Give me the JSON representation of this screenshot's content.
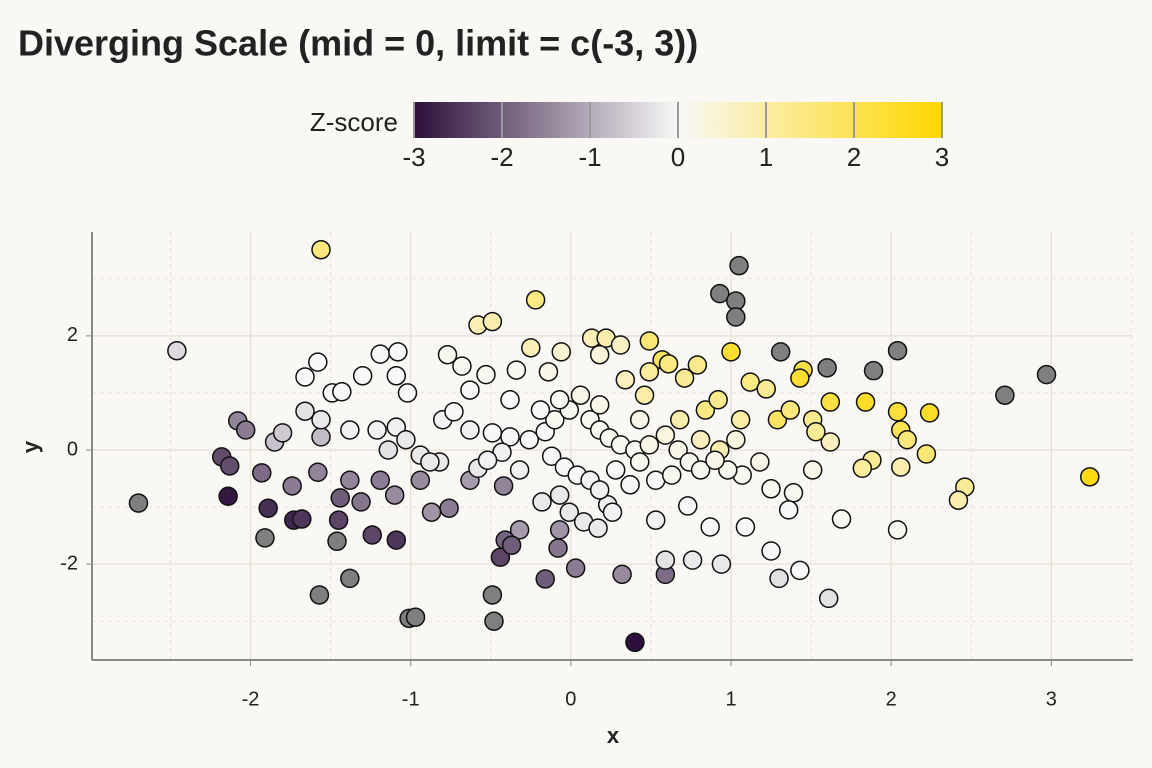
{
  "chart_data": {
    "type": "scatter",
    "title": "Diverging Scale (mid = 0, limit = c(-3, 3))",
    "x_label": "x",
    "y_label": "y",
    "legend_title": "Z-score",
    "color_scale": {
      "low": "#2c0f3a",
      "mid": "#f8f8f8",
      "high": "#ffd700",
      "limits": [
        -3,
        3
      ],
      "na_color": "#7f7f7f",
      "ticks": [
        -3,
        -2,
        -1,
        0,
        1,
        2,
        3
      ]
    },
    "xlim": [
      -2.99,
      3.51
    ],
    "ylim": [
      -3.68,
      3.82
    ],
    "xticks": [
      -2,
      -1,
      0,
      1,
      2,
      3
    ],
    "yticks": [
      -2,
      0,
      2
    ],
    "xminor": [
      -2.5,
      -1.5,
      -0.5,
      0.5,
      1.5,
      2.5,
      3.5
    ],
    "yminor": [
      -3,
      -1,
      1,
      3
    ],
    "grid": true,
    "points": [
      {
        "x": -2.7,
        "y": -0.93,
        "z": -3.4
      },
      {
        "x": -1.91,
        "y": -1.54,
        "z": -3.3
      },
      {
        "x": -1.57,
        "y": -2.54,
        "z": -3.5
      },
      {
        "x": -1.46,
        "y": -1.6,
        "z": -3.2
      },
      {
        "x": -1.38,
        "y": -2.25,
        "z": -3.4
      },
      {
        "x": -1.01,
        "y": -2.95,
        "z": -3.5
      },
      {
        "x": -0.97,
        "y": -2.93,
        "z": -3.5
      },
      {
        "x": -0.49,
        "y": -2.54,
        "z": -3.3
      },
      {
        "x": -0.48,
        "y": -3.0,
        "z": -3.6
      },
      {
        "x": 0.93,
        "y": 2.74,
        "z": 3.4
      },
      {
        "x": 1.03,
        "y": 2.61,
        "z": 3.3
      },
      {
        "x": 1.05,
        "y": 3.23,
        "z": 3.6
      },
      {
        "x": 1.03,
        "y": 2.33,
        "z": 3.2
      },
      {
        "x": 1.31,
        "y": 1.72,
        "z": 3.2
      },
      {
        "x": 1.6,
        "y": 1.44,
        "z": 3.3
      },
      {
        "x": 1.89,
        "y": 1.39,
        "z": 3.4
      },
      {
        "x": 2.04,
        "y": 1.74,
        "z": 3.5
      },
      {
        "x": 2.71,
        "y": 0.96,
        "z": 3.6
      },
      {
        "x": 2.97,
        "y": 1.32,
        "z": 3.8
      },
      {
        "x": -2.14,
        "y": -0.81,
        "z": -2.9
      },
      {
        "x": 0.4,
        "y": -3.37,
        "z": -3.0
      },
      {
        "x": -1.89,
        "y": -1.02,
        "z": -2.6
      },
      {
        "x": -1.73,
        "y": -1.23,
        "z": -2.7
      },
      {
        "x": -1.68,
        "y": -1.21,
        "z": -2.5
      },
      {
        "x": -2.18,
        "y": -0.12,
        "z": -2.2
      },
      {
        "x": -2.13,
        "y": -0.28,
        "z": -2.2
      },
      {
        "x": -1.09,
        "y": -1.58,
        "z": -2.5
      },
      {
        "x": -1.24,
        "y": -1.49,
        "z": -2.3
      },
      {
        "x": -0.44,
        "y": -1.88,
        "z": -2.3
      },
      {
        "x": -0.16,
        "y": -2.26,
        "z": -2.0
      },
      {
        "x": 0.59,
        "y": -2.18,
        "z": -1.8
      },
      {
        "x": 0.32,
        "y": -2.18,
        "z": -1.4
      },
      {
        "x": 0.03,
        "y": -2.07,
        "z": -1.6
      },
      {
        "x": -2.08,
        "y": 0.51,
        "z": -1.5
      },
      {
        "x": -2.03,
        "y": 0.35,
        "z": -1.6
      },
      {
        "x": -1.56,
        "y": 0.23,
        "z": -0.8
      },
      {
        "x": -1.85,
        "y": 0.14,
        "z": -0.7
      },
      {
        "x": -1.45,
        "y": -1.23,
        "z": -2.3
      },
      {
        "x": -1.44,
        "y": -0.84,
        "z": -2.0
      },
      {
        "x": -1.8,
        "y": 0.3,
        "z": -0.6
      },
      {
        "x": -1.93,
        "y": -0.4,
        "z": -1.8
      },
      {
        "x": -1.74,
        "y": -0.63,
        "z": -1.6
      },
      {
        "x": -1.58,
        "y": -0.39,
        "z": -1.5
      },
      {
        "x": -1.31,
        "y": -0.91,
        "z": -1.7
      },
      {
        "x": -1.19,
        "y": -0.53,
        "z": -1.6
      },
      {
        "x": -0.94,
        "y": -0.53,
        "z": -1.4
      },
      {
        "x": -0.76,
        "y": -1.02,
        "z": -1.6
      },
      {
        "x": -0.63,
        "y": -0.53,
        "z": -1.2
      },
      {
        "x": -0.42,
        "y": -0.63,
        "z": -1.5
      },
      {
        "x": -0.32,
        "y": -1.4,
        "z": -1.2
      },
      {
        "x": -0.08,
        "y": -1.72,
        "z": -1.7
      },
      {
        "x": -0.41,
        "y": -1.58,
        "z": -1.9
      },
      {
        "x": -0.37,
        "y": -1.67,
        "z": -2.0
      },
      {
        "x": -0.07,
        "y": -1.4,
        "z": -1.3
      },
      {
        "x": -0.87,
        "y": -1.09,
        "z": -1.3
      },
      {
        "x": -1.1,
        "y": -0.79,
        "z": -1.4
      },
      {
        "x": -1.38,
        "y": -0.53,
        "z": -1.5
      },
      {
        "x": -2.46,
        "y": 1.74,
        "z": -0.4
      },
      {
        "x": -1.56,
        "y": 3.51,
        "z": 1.5
      },
      {
        "x": -0.22,
        "y": 2.63,
        "z": 1.4
      },
      {
        "x": -0.58,
        "y": 2.19,
        "z": 0.8
      },
      {
        "x": -0.49,
        "y": 2.25,
        "z": 0.9
      },
      {
        "x": 0.13,
        "y": 1.96,
        "z": 0.8
      },
      {
        "x": 0.22,
        "y": 1.96,
        "z": 0.9
      },
      {
        "x": 0.49,
        "y": 1.91,
        "z": 1.6
      },
      {
        "x": 1.0,
        "y": 1.72,
        "z": 2.4
      },
      {
        "x": 3.24,
        "y": -0.47,
        "z": 2.8
      },
      {
        "x": 1.84,
        "y": 0.84,
        "z": 2.5
      },
      {
        "x": 2.06,
        "y": 0.35,
        "z": 2.0
      },
      {
        "x": 2.24,
        "y": 0.65,
        "z": 2.5
      },
      {
        "x": 2.04,
        "y": 0.67,
        "z": 2.3
      },
      {
        "x": 2.1,
        "y": 0.18,
        "z": 1.5
      },
      {
        "x": 2.22,
        "y": -0.07,
        "z": 1.6
      },
      {
        "x": 2.46,
        "y": -0.65,
        "z": 1.2
      },
      {
        "x": 2.42,
        "y": -0.88,
        "z": 0.9
      },
      {
        "x": 2.06,
        "y": -0.3,
        "z": 0.9
      },
      {
        "x": 1.88,
        "y": -0.18,
        "z": 1.2
      },
      {
        "x": 1.82,
        "y": -0.32,
        "z": 1.1
      },
      {
        "x": 1.62,
        "y": 0.84,
        "z": 2.2
      },
      {
        "x": 1.62,
        "y": 0.14,
        "z": 0.7
      },
      {
        "x": 1.45,
        "y": 1.4,
        "z": 2.2
      },
      {
        "x": 1.43,
        "y": 1.26,
        "z": 2.4
      },
      {
        "x": 1.12,
        "y": 1.19,
        "z": 1.4
      },
      {
        "x": 1.22,
        "y": 1.07,
        "z": 1.2
      },
      {
        "x": 0.57,
        "y": 1.58,
        "z": 1.9
      },
      {
        "x": 0.79,
        "y": 1.49,
        "z": 1.3
      },
      {
        "x": 0.71,
        "y": 1.26,
        "z": 1.2
      },
      {
        "x": 0.31,
        "y": 1.84,
        "z": 0.6
      },
      {
        "x": 0.18,
        "y": 1.67,
        "z": 0.4
      },
      {
        "x": -0.06,
        "y": 1.72,
        "z": 0.5
      },
      {
        "x": -0.25,
        "y": 1.79,
        "z": 0.8
      },
      {
        "x": 0.49,
        "y": 1.37,
        "z": 1.1
      },
      {
        "x": 0.61,
        "y": 1.51,
        "z": 1.4
      },
      {
        "x": 0.84,
        "y": 0.7,
        "z": 1.4
      },
      {
        "x": 0.92,
        "y": 0.88,
        "z": 1.3
      },
      {
        "x": 1.06,
        "y": 0.53,
        "z": 1.0
      },
      {
        "x": 1.29,
        "y": 0.53,
        "z": 1.8
      },
      {
        "x": 1.37,
        "y": 0.7,
        "z": 1.5
      },
      {
        "x": 1.51,
        "y": 0.53,
        "z": 1.3
      },
      {
        "x": 1.53,
        "y": 0.32,
        "z": 1.2
      },
      {
        "x": 0.46,
        "y": 0.96,
        "z": 1.0
      },
      {
        "x": 0.68,
        "y": 0.53,
        "z": 0.9
      },
      {
        "x": 0.81,
        "y": 0.18,
        "z": 0.7
      },
      {
        "x": 0.93,
        "y": 0.0,
        "z": 0.9
      },
      {
        "x": 0.34,
        "y": 1.23,
        "z": 0.7
      },
      {
        "x": 1.61,
        "y": -2.6,
        "z": -0.3
      },
      {
        "x": 1.3,
        "y": -2.25,
        "z": -0.3
      },
      {
        "x": 0.94,
        "y": -2.0,
        "z": -0.2
      },
      {
        "x": 0.76,
        "y": -1.93,
        "z": -0.2
      },
      {
        "x": 0.59,
        "y": -1.93,
        "z": -0.3
      },
      {
        "x": -1.66,
        "y": 0.68,
        "z": -0.3
      },
      {
        "x": 2.04,
        "y": -1.4,
        "z": 0.1
      },
      {
        "x": 1.69,
        "y": -1.21,
        "z": 0.1
      },
      {
        "x": 1.43,
        "y": -2.11,
        "z": 0.0
      },
      {
        "x": 1.25,
        "y": -1.77,
        "z": 0.0
      },
      {
        "x": 1.09,
        "y": -1.35,
        "z": 0.0
      },
      {
        "x": 0.87,
        "y": -1.35,
        "z": 0.0
      },
      {
        "x": 0.53,
        "y": -1.23,
        "z": -0.1
      },
      {
        "x": 0.23,
        "y": -0.96,
        "z": -0.1
      },
      {
        "x": 0.73,
        "y": -0.98,
        "z": 0.0
      },
      {
        "x": 1.39,
        "y": -0.75,
        "z": 0.1
      },
      {
        "x": 1.36,
        "y": -1.05,
        "z": 0.0
      },
      {
        "x": 1.25,
        "y": -0.68,
        "z": 0.1
      },
      {
        "x": 1.07,
        "y": -0.44,
        "z": 0.1
      },
      {
        "x": 0.98,
        "y": -0.35,
        "z": 0.1
      },
      {
        "x": 1.51,
        "y": -0.35,
        "z": 0.2
      },
      {
        "x": -1.58,
        "y": 1.54,
        "z": 0.0
      },
      {
        "x": -1.66,
        "y": 1.28,
        "z": 0.0
      },
      {
        "x": -1.49,
        "y": 1.0,
        "z": 0.0
      },
      {
        "x": -1.43,
        "y": 1.02,
        "z": 0.0
      },
      {
        "x": -1.3,
        "y": 1.3,
        "z": 0.0
      },
      {
        "x": -1.19,
        "y": 1.68,
        "z": 0.0
      },
      {
        "x": -1.08,
        "y": 1.72,
        "z": 0.0
      },
      {
        "x": -1.09,
        "y": 1.3,
        "z": 0.0
      },
      {
        "x": -1.02,
        "y": 1.0,
        "z": 0.0
      },
      {
        "x": -1.38,
        "y": 0.35,
        "z": -0.1
      },
      {
        "x": -1.21,
        "y": 0.35,
        "z": -0.1
      },
      {
        "x": -1.09,
        "y": 0.4,
        "z": -0.1
      },
      {
        "x": -1.03,
        "y": 0.18,
        "z": -0.2
      },
      {
        "x": -0.77,
        "y": 1.67,
        "z": 0.1
      },
      {
        "x": -0.68,
        "y": 1.47,
        "z": 0.1
      },
      {
        "x": -0.63,
        "y": 1.05,
        "z": 0.0
      },
      {
        "x": -0.53,
        "y": 1.32,
        "z": 0.1
      },
      {
        "x": -0.34,
        "y": 1.4,
        "z": 0.1
      },
      {
        "x": -0.14,
        "y": 1.37,
        "z": 0.2
      },
      {
        "x": -0.8,
        "y": 0.53,
        "z": -0.1
      },
      {
        "x": -0.73,
        "y": 0.67,
        "z": 0.0
      },
      {
        "x": -0.63,
        "y": 0.35,
        "z": -0.1
      },
      {
        "x": -0.49,
        "y": 0.3,
        "z": 0.0
      },
      {
        "x": -0.38,
        "y": 0.23,
        "z": 0.0
      },
      {
        "x": -0.26,
        "y": 0.18,
        "z": 0.0
      },
      {
        "x": -0.16,
        "y": 0.32,
        "z": 0.0
      },
      {
        "x": -0.1,
        "y": 0.53,
        "z": 0.1
      },
      {
        "x": -0.01,
        "y": 0.7,
        "z": 0.1
      },
      {
        "x": 0.06,
        "y": 0.96,
        "z": 0.2
      },
      {
        "x": 0.12,
        "y": 0.53,
        "z": 0.1
      },
      {
        "x": 0.18,
        "y": 0.35,
        "z": 0.1
      },
      {
        "x": 0.24,
        "y": 0.21,
        "z": 0.1
      },
      {
        "x": 0.31,
        "y": 0.09,
        "z": 0.1
      },
      {
        "x": 0.4,
        "y": 0.0,
        "z": 0.1
      },
      {
        "x": 0.49,
        "y": 0.09,
        "z": 0.2
      },
      {
        "x": 0.59,
        "y": 0.26,
        "z": 0.3
      },
      {
        "x": 0.67,
        "y": 0.0,
        "z": 0.2
      },
      {
        "x": 0.74,
        "y": -0.21,
        "z": 0.1
      },
      {
        "x": 0.81,
        "y": -0.35,
        "z": 0.1
      },
      {
        "x": 0.9,
        "y": -0.18,
        "z": 0.2
      },
      {
        "x": 1.03,
        "y": 0.18,
        "z": 0.3
      },
      {
        "x": 1.18,
        "y": -0.21,
        "z": 0.2
      },
      {
        "x": -0.58,
        "y": -0.32,
        "z": -0.2
      },
      {
        "x": -0.82,
        "y": -0.21,
        "z": -0.2
      },
      {
        "x": -0.94,
        "y": -0.09,
        "z": -0.2
      },
      {
        "x": -1.14,
        "y": 0.0,
        "z": -0.3
      },
      {
        "x": -0.12,
        "y": -0.11,
        "z": 0.0
      },
      {
        "x": -0.04,
        "y": -0.3,
        "z": 0.0
      },
      {
        "x": 0.04,
        "y": -0.44,
        "z": 0.0
      },
      {
        "x": 0.12,
        "y": -0.53,
        "z": -0.1
      },
      {
        "x": 0.18,
        "y": -0.7,
        "z": -0.1
      },
      {
        "x": -0.07,
        "y": -0.79,
        "z": -0.2
      },
      {
        "x": -0.18,
        "y": -0.91,
        "z": -0.2
      },
      {
        "x": -0.32,
        "y": -0.35,
        "z": -0.1
      },
      {
        "x": -0.43,
        "y": -0.04,
        "z": -0.1
      },
      {
        "x": -0.52,
        "y": -0.18,
        "z": -0.1
      },
      {
        "x": 0.28,
        "y": -0.35,
        "z": 0.0
      },
      {
        "x": 0.37,
        "y": -0.61,
        "z": 0.0
      },
      {
        "x": 0.43,
        "y": -0.21,
        "z": 0.1
      },
      {
        "x": 0.53,
        "y": -0.53,
        "z": 0.0
      },
      {
        "x": 0.63,
        "y": -0.44,
        "z": 0.1
      },
      {
        "x": -0.88,
        "y": -0.21,
        "z": -0.2
      },
      {
        "x": -0.01,
        "y": -1.09,
        "z": -0.2
      },
      {
        "x": 0.08,
        "y": -1.26,
        "z": -0.2
      },
      {
        "x": 0.17,
        "y": -1.37,
        "z": -0.2
      },
      {
        "x": 0.26,
        "y": -1.09,
        "z": -0.1
      },
      {
        "x": -1.56,
        "y": 0.53,
        "z": -0.2
      },
      {
        "x": -0.19,
        "y": 0.7,
        "z": 0.0
      },
      {
        "x": -0.38,
        "y": 0.88,
        "z": 0.0
      },
      {
        "x": -0.07,
        "y": 0.88,
        "z": 0.1
      },
      {
        "x": 0.18,
        "y": 0.79,
        "z": 0.2
      },
      {
        "x": 0.43,
        "y": 0.53,
        "z": 0.2
      }
    ]
  }
}
